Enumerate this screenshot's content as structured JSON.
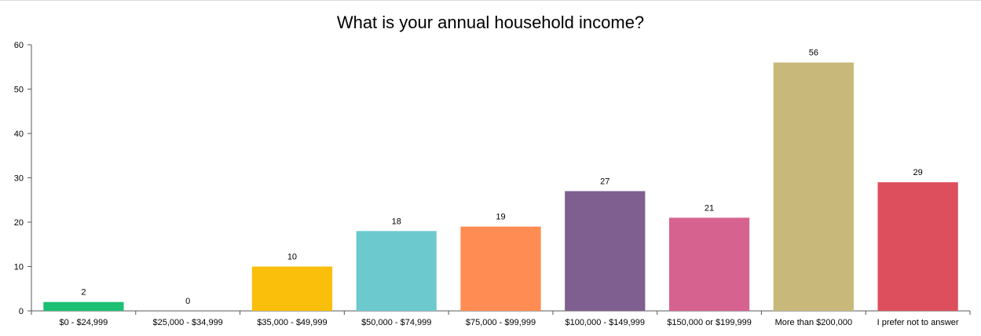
{
  "chart_data": {
    "type": "bar",
    "title": "What is your annual household income?",
    "categories": [
      "$0 - $24,999",
      "$25,000 - $34,999",
      "$35,000 - $49,999",
      "$50,000 - $74,999",
      "$75,000 - $99,999",
      "$100,000 - $149,999",
      "$150,000 or $199,999",
      "More than $200,000",
      "I prefer not to answer"
    ],
    "values": [
      2,
      0,
      10,
      18,
      19,
      27,
      21,
      56,
      29
    ],
    "colors": [
      "#1dbf73",
      "#9e9e9e",
      "#f9bf0b",
      "#6ccace",
      "#ff8c52",
      "#7f5f8f",
      "#d5628f",
      "#c8b97b",
      "#dd4f5c"
    ],
    "ylim": [
      0,
      60
    ],
    "yticks": [
      0,
      10,
      20,
      30,
      40,
      50,
      60
    ],
    "xlabel": "",
    "ylabel": "",
    "grid": false,
    "legend": "none"
  }
}
